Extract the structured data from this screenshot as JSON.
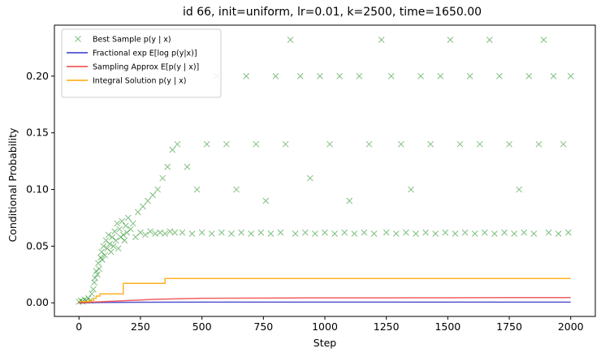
{
  "chart_data": {
    "type": "scatter",
    "title": "id 66, init=uniform, lr=0.01, k=2500, time=1650.00",
    "xlabel": "Step",
    "ylabel": "Conditional Probability",
    "xlim": [
      -100,
      2100
    ],
    "ylim": [
      -0.012,
      0.245
    ],
    "xticks": [
      0,
      250,
      500,
      750,
      1000,
      1250,
      1500,
      1750,
      2000
    ],
    "xtick_labels": [
      "0",
      "250",
      "500",
      "750",
      "1000",
      "1250",
      "1500",
      "1750",
      "2000"
    ],
    "yticks": [
      0.0,
      0.05,
      0.1,
      0.15,
      0.2
    ],
    "ytick_labels": [
      "0.00",
      "0.05",
      "0.10",
      "0.15",
      "0.20"
    ],
    "grid": false,
    "legend_position": "top-left",
    "series": [
      {
        "name": "Best Sample p(y | x)",
        "kind": "scatter",
        "marker": "x",
        "color": "#008000",
        "points": [
          [
            0,
            0.001
          ],
          [
            8,
            0.002
          ],
          [
            15,
            0.001
          ],
          [
            22,
            0.003
          ],
          [
            30,
            0.002
          ],
          [
            38,
            0.004
          ],
          [
            45,
            0.002
          ],
          [
            52,
            0.008
          ],
          [
            58,
            0.012
          ],
          [
            62,
            0.018
          ],
          [
            65,
            0.022
          ],
          [
            70,
            0.028
          ],
          [
            75,
            0.025
          ],
          [
            78,
            0.035
          ],
          [
            82,
            0.03
          ],
          [
            88,
            0.04
          ],
          [
            92,
            0.045
          ],
          [
            95,
            0.038
          ],
          [
            100,
            0.05
          ],
          [
            105,
            0.042
          ],
          [
            110,
            0.055
          ],
          [
            115,
            0.048
          ],
          [
            120,
            0.06
          ],
          [
            125,
            0.052
          ],
          [
            130,
            0.045
          ],
          [
            135,
            0.058
          ],
          [
            140,
            0.05
          ],
          [
            145,
            0.063
          ],
          [
            150,
            0.055
          ],
          [
            155,
            0.07
          ],
          [
            160,
            0.048
          ],
          [
            165,
            0.065
          ],
          [
            170,
            0.058
          ],
          [
            175,
            0.072
          ],
          [
            180,
            0.06
          ],
          [
            185,
            0.055
          ],
          [
            190,
            0.068
          ],
          [
            195,
            0.062
          ],
          [
            200,
            0.075
          ],
          [
            210,
            0.065
          ],
          [
            220,
            0.07
          ],
          [
            230,
            0.058
          ],
          [
            240,
            0.08
          ],
          [
            250,
            0.062
          ],
          [
            260,
            0.085
          ],
          [
            270,
            0.06
          ],
          [
            280,
            0.09
          ],
          [
            290,
            0.063
          ],
          [
            300,
            0.095
          ],
          [
            310,
            0.061
          ],
          [
            320,
            0.1
          ],
          [
            330,
            0.062
          ],
          [
            340,
            0.11
          ],
          [
            350,
            0.061
          ],
          [
            360,
            0.12
          ],
          [
            370,
            0.063
          ],
          [
            380,
            0.135
          ],
          [
            390,
            0.062
          ],
          [
            400,
            0.14
          ],
          [
            420,
            0.062
          ],
          [
            440,
            0.12
          ],
          [
            460,
            0.061
          ],
          [
            480,
            0.1
          ],
          [
            500,
            0.062
          ],
          [
            520,
            0.14
          ],
          [
            540,
            0.061
          ],
          [
            560,
            0.2
          ],
          [
            580,
            0.062
          ],
          [
            600,
            0.14
          ],
          [
            620,
            0.061
          ],
          [
            640,
            0.1
          ],
          [
            660,
            0.062
          ],
          [
            680,
            0.2
          ],
          [
            700,
            0.061
          ],
          [
            720,
            0.14
          ],
          [
            740,
            0.062
          ],
          [
            760,
            0.09
          ],
          [
            780,
            0.061
          ],
          [
            800,
            0.2
          ],
          [
            820,
            0.062
          ],
          [
            840,
            0.14
          ],
          [
            860,
            0.232
          ],
          [
            880,
            0.061
          ],
          [
            900,
            0.2
          ],
          [
            920,
            0.062
          ],
          [
            940,
            0.11
          ],
          [
            960,
            0.061
          ],
          [
            980,
            0.2
          ],
          [
            1000,
            0.062
          ],
          [
            1020,
            0.14
          ],
          [
            1040,
            0.061
          ],
          [
            1060,
            0.2
          ],
          [
            1080,
            0.062
          ],
          [
            1100,
            0.09
          ],
          [
            1120,
            0.061
          ],
          [
            1140,
            0.2
          ],
          [
            1160,
            0.062
          ],
          [
            1180,
            0.14
          ],
          [
            1200,
            0.061
          ],
          [
            1230,
            0.232
          ],
          [
            1250,
            0.062
          ],
          [
            1270,
            0.2
          ],
          [
            1290,
            0.061
          ],
          [
            1310,
            0.14
          ],
          [
            1330,
            0.062
          ],
          [
            1350,
            0.1
          ],
          [
            1370,
            0.061
          ],
          [
            1390,
            0.2
          ],
          [
            1410,
            0.062
          ],
          [
            1430,
            0.14
          ],
          [
            1450,
            0.061
          ],
          [
            1470,
            0.2
          ],
          [
            1490,
            0.062
          ],
          [
            1510,
            0.232
          ],
          [
            1530,
            0.061
          ],
          [
            1550,
            0.14
          ],
          [
            1570,
            0.062
          ],
          [
            1590,
            0.2
          ],
          [
            1610,
            0.061
          ],
          [
            1630,
            0.14
          ],
          [
            1650,
            0.062
          ],
          [
            1670,
            0.232
          ],
          [
            1690,
            0.061
          ],
          [
            1710,
            0.2
          ],
          [
            1730,
            0.062
          ],
          [
            1750,
            0.14
          ],
          [
            1770,
            0.061
          ],
          [
            1790,
            0.1
          ],
          [
            1810,
            0.062
          ],
          [
            1830,
            0.2
          ],
          [
            1850,
            0.061
          ],
          [
            1870,
            0.14
          ],
          [
            1890,
            0.232
          ],
          [
            1910,
            0.062
          ],
          [
            1930,
            0.2
          ],
          [
            1950,
            0.061
          ],
          [
            1970,
            0.14
          ],
          [
            1990,
            0.062
          ],
          [
            2000,
            0.2
          ]
        ]
      },
      {
        "name": "Fractional exp E[log p(y|x)]",
        "kind": "line",
        "color": "#3535c8",
        "x": [
          0,
          100,
          250,
          500,
          1000,
          1500,
          2000
        ],
        "y": [
          0.0,
          0.0003,
          0.0005,
          0.0006,
          0.0006,
          0.0006,
          0.0006
        ]
      },
      {
        "name": "Sampling Approx E[p(y | x)]",
        "kind": "line",
        "color": "#ee4444",
        "x": [
          0,
          50,
          100,
          150,
          200,
          250,
          300,
          400,
          500,
          750,
          1000,
          1250,
          1500,
          1750,
          2000
        ],
        "y": [
          0.0,
          0.0005,
          0.001,
          0.0015,
          0.002,
          0.0025,
          0.003,
          0.0035,
          0.004,
          0.0042,
          0.0044,
          0.0044,
          0.0045,
          0.0046,
          0.0047
        ]
      },
      {
        "name": "Integral Solution p(y | x)",
        "kind": "line",
        "step": true,
        "color": "#ffa500",
        "x": [
          0,
          40,
          60,
          70,
          85,
          180,
          350,
          2000
        ],
        "y": [
          0.001,
          0.002,
          0.004,
          0.006,
          0.0078,
          0.0172,
          0.0215,
          0.0215
        ]
      }
    ]
  }
}
